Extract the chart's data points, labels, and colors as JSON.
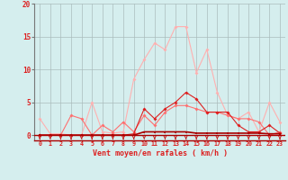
{
  "x": [
    0,
    1,
    2,
    3,
    4,
    5,
    6,
    7,
    8,
    9,
    10,
    11,
    12,
    13,
    14,
    15,
    16,
    17,
    18,
    19,
    20,
    21,
    22,
    23
  ],
  "line_light": [
    2.5,
    0.2,
    0.2,
    0.0,
    0.0,
    5.0,
    0.5,
    0.3,
    0.5,
    8.5,
    11.5,
    14.0,
    13.0,
    16.5,
    16.5,
    9.5,
    13.0,
    6.5,
    3.0,
    2.5,
    3.5,
    0.5,
    5.0,
    2.0
  ],
  "line_medium": [
    0.0,
    0.0,
    0.0,
    3.0,
    2.5,
    0.0,
    1.5,
    0.5,
    2.0,
    0.5,
    3.0,
    1.5,
    3.5,
    4.5,
    4.5,
    4.0,
    3.5,
    3.5,
    3.0,
    2.5,
    2.5,
    2.0,
    0.0,
    0.5
  ],
  "line_dark": [
    0.0,
    0.0,
    0.0,
    0.0,
    0.0,
    0.0,
    0.0,
    0.0,
    0.0,
    0.2,
    4.0,
    2.5,
    4.0,
    5.0,
    6.5,
    5.5,
    3.5,
    3.5,
    3.5,
    1.5,
    0.5,
    0.5,
    1.5,
    0.3
  ],
  "line_base": [
    0.0,
    0.0,
    0.0,
    0.0,
    0.0,
    0.0,
    0.0,
    0.0,
    0.0,
    0.0,
    0.5,
    0.5,
    0.5,
    0.5,
    0.5,
    0.3,
    0.3,
    0.3,
    0.3,
    0.3,
    0.3,
    0.3,
    0.2,
    0.2
  ],
  "color_light": "#FFB0B0",
  "color_medium": "#FF7070",
  "color_dark": "#DD2020",
  "color_base": "#AA0000",
  "color_arrow": "#CC2222",
  "bg_color": "#D5EEEE",
  "grid_color": "#AABCBC",
  "xlabel": "Vent moyen/en rafales ( km/h )",
  "yticks": [
    0,
    5,
    10,
    15,
    20
  ],
  "ylim_min": -0.8,
  "ylim_max": 20,
  "xlim_min": -0.5,
  "xlim_max": 23.5
}
